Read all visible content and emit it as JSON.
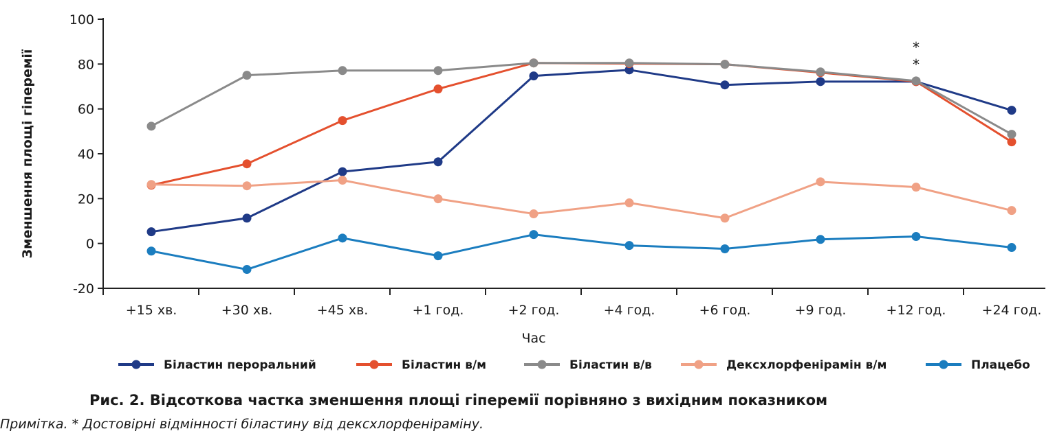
{
  "chart_data": {
    "type": "line",
    "ylabel": "Зменшення площі гіперемії",
    "xlabel": "Час",
    "ylim": [
      -20,
      100
    ],
    "yticks": [
      "100",
      "80",
      "60",
      "40",
      "20",
      "0",
      "-20"
    ],
    "categories": [
      "+15 хв.",
      "+30 хв.",
      "+45 хв.",
      "+1 год.",
      "+2 год.",
      "+4 год.",
      "+6 год.",
      "+9 год.",
      "+12 год.",
      "+24 год."
    ],
    "series": [
      {
        "name": "Біластин пероральний",
        "color": "#1f3a87",
        "values": [
          5.2,
          11.3,
          32,
          36.4,
          74.7,
          77.4,
          70.7,
          72.2,
          72.2,
          59.4
        ]
      },
      {
        "name": "Біластин в/м",
        "color": "#e4502e",
        "values": [
          26,
          35.5,
          54.8,
          68.9,
          80.5,
          80.2,
          79.9,
          76.2,
          72.2,
          45.3
        ]
      },
      {
        "name": "Біластин в/в",
        "color": "#8a8a8a",
        "values": [
          52.3,
          75,
          77.1,
          77.1,
          80.5,
          80.5,
          79.9,
          76.5,
          72.5,
          48.7
        ]
      },
      {
        "name": "Дексхлорфенірамін в/м",
        "color": "#f0a185",
        "values": [
          26.3,
          25.7,
          28.2,
          19.9,
          13.2,
          18.1,
          11.3,
          27.5,
          25.1,
          14.7
        ]
      },
      {
        "name": "Плацебо",
        "color": "#1b7dbf",
        "values": [
          -3.4,
          -11.6,
          2.4,
          -5.5,
          4,
          -0.9,
          -2.4,
          1.8,
          3.1,
          -1.8
        ]
      }
    ],
    "annotations": [
      {
        "category": "+12 год.",
        "text": "*"
      },
      {
        "category": "+12 год.",
        "text": "*"
      }
    ],
    "legend": "bottom",
    "grid": false
  },
  "caption": "Рис. 2. Відсоткова частка зменшення площі гіперемії порівняно з вихідним показником",
  "note": "Примітка. * Достовірні відмінності біластину від дексхлорфеніраміну."
}
